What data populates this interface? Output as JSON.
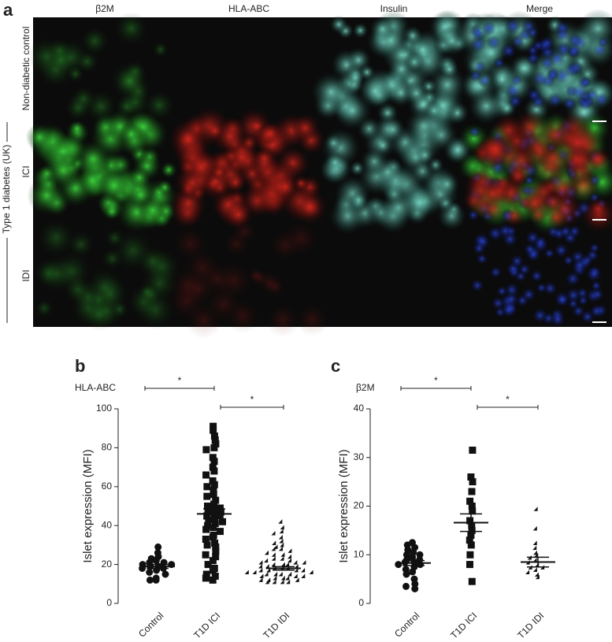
{
  "panel_a": {
    "letter": "a",
    "columns": [
      "β2M",
      "HLA-ABC",
      "Insulin",
      "Merge"
    ],
    "rows": [
      "Non-diabetic control",
      "ICI",
      "IDI"
    ],
    "group_label": "Type 1 diabetes (UK)"
  },
  "chart_data": [
    {
      "type": "dot",
      "letter": "b",
      "marker_label": "HLA-ABC",
      "y_label": "Islet expression (MFI)",
      "categories": [
        "Control",
        "T1D ICI",
        "T1D IDI"
      ],
      "markers": [
        "circle",
        "square",
        "triangle"
      ],
      "values": [
        [
          29,
          26,
          24,
          23,
          22,
          21,
          21,
          20,
          20,
          19,
          19,
          18,
          18,
          17,
          16,
          15,
          13,
          12,
          12
        ],
        [
          91,
          89,
          86,
          84,
          82,
          80,
          79,
          75,
          73,
          70,
          68,
          66,
          63,
          61,
          60,
          58,
          56,
          55,
          53,
          51,
          50,
          49,
          48,
          47,
          47,
          46,
          45,
          45,
          44,
          43,
          42,
          41,
          40,
          39,
          38,
          37,
          35,
          34,
          33,
          31,
          30,
          29,
          27,
          25,
          24,
          22,
          20,
          18,
          17,
          15,
          14,
          13,
          12
        ],
        [
          41,
          38,
          36,
          35,
          33,
          31,
          30,
          29,
          28,
          27,
          27,
          26,
          25,
          24,
          24,
          23,
          22,
          22,
          21,
          21,
          20,
          20,
          20,
          19,
          19,
          19,
          18,
          18,
          18,
          17,
          17,
          17,
          16,
          16,
          16,
          16,
          15,
          15,
          15,
          14,
          14,
          14,
          14,
          13,
          13,
          13,
          12,
          12,
          12,
          11,
          11,
          11,
          10,
          10,
          10,
          10
        ]
      ],
      "means": [
        19,
        46,
        18
      ],
      "sems": [
        1,
        2.6,
        0.9
      ],
      "significance": [
        {
          "label": "*",
          "between": [
            0,
            1
          ]
        },
        {
          "label": "*",
          "between": [
            1,
            2
          ]
        }
      ],
      "ylim": [
        0,
        100
      ],
      "yticks": [
        0,
        20,
        40,
        60,
        80,
        100
      ],
      "color": "#111111"
    },
    {
      "type": "dot",
      "letter": "c",
      "marker_label": "β2M",
      "y_label": "Islet expression (MFI)",
      "categories": [
        "Control",
        "T1D ICI",
        "T1D IDI"
      ],
      "markers": [
        "circle",
        "square",
        "triangle"
      ],
      "values": [
        [
          12.5,
          12,
          11.5,
          11,
          10.5,
          10,
          10,
          9.5,
          9,
          9,
          8.5,
          8.5,
          8,
          8,
          7.5,
          7,
          6.5,
          6,
          5,
          4,
          3.5,
          3
        ],
        [
          31.5,
          26,
          25,
          23,
          21,
          20,
          19,
          17,
          16,
          15,
          14,
          13,
          12,
          10,
          8,
          4.5
        ],
        [
          19,
          15,
          12,
          11,
          10,
          9.5,
          9,
          8.5,
          8,
          7.5,
          7,
          7,
          6.5,
          6,
          5.5,
          5
        ]
      ],
      "means": [
        8.3,
        16.6,
        8.5
      ],
      "sems": [
        0.5,
        1.8,
        1
      ],
      "significance": [
        {
          "label": "*",
          "between": [
            0,
            1
          ]
        },
        {
          "label": "*",
          "between": [
            1,
            2
          ]
        }
      ],
      "ylim": [
        0,
        40
      ],
      "yticks": [
        0,
        10,
        20,
        30,
        40
      ],
      "color": "#111111"
    }
  ]
}
